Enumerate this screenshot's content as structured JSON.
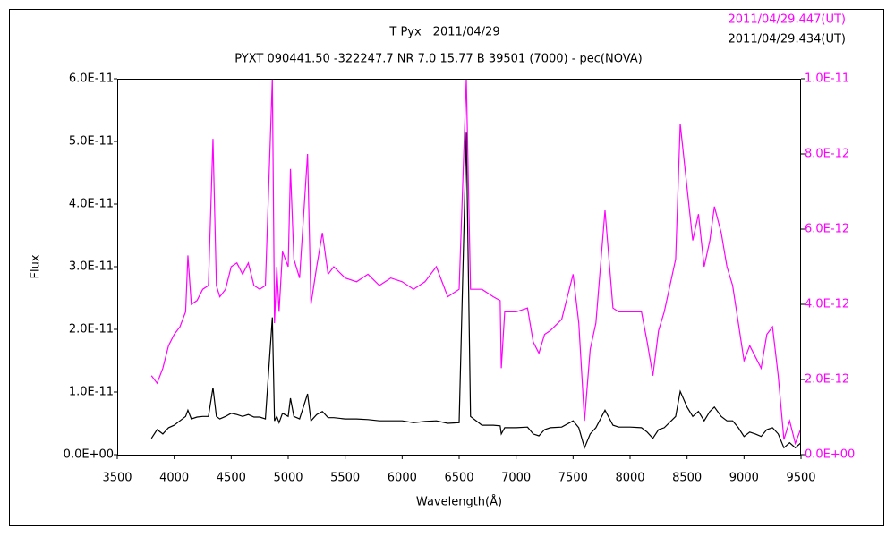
{
  "chart_data": {
    "type": "line",
    "title": "T Pyx　2011/04/29",
    "subtitle": "PYXT 090441.50 -322247.7 NR 7.0 15.77 B 39501 (7000) - pec(NOVA)",
    "x_label": "Wavelength(Å)",
    "y_label": "Flux",
    "xlim": [
      3500,
      9500
    ],
    "xticks": [
      3500,
      4000,
      4500,
      5000,
      5500,
      6000,
      6500,
      7000,
      7500,
      8000,
      8500,
      9000,
      9500
    ],
    "ylim": [
      0,
      6e-11
    ],
    "yticks": [
      {
        "value": 0,
        "label": "0.0E+00"
      },
      {
        "value": 1e-11,
        "label": "1.0E-11"
      },
      {
        "value": 2e-11,
        "label": "2.0E-11"
      },
      {
        "value": 3e-11,
        "label": "3.0E-11"
      },
      {
        "value": 4e-11,
        "label": "4.0E-11"
      },
      {
        "value": 5e-11,
        "label": "5.0E-11"
      },
      {
        "value": 6e-11,
        "label": "6.0E-11"
      }
    ],
    "y2lim": [
      0,
      1e-11
    ],
    "y2ticks": [
      {
        "value": 0,
        "label": "0.0E+00"
      },
      {
        "value": 2e-12,
        "label": "2.0E-12"
      },
      {
        "value": 4e-12,
        "label": "4.0E-12"
      },
      {
        "value": 6e-12,
        "label": "6.0E-12"
      },
      {
        "value": 8e-12,
        "label": "8.0E-12"
      },
      {
        "value": 1e-11,
        "label": "1.0E-11"
      }
    ],
    "grid": false,
    "legend": "top-right",
    "x": [
      3800,
      3850,
      3900,
      3950,
      4000,
      4050,
      4100,
      4120,
      4150,
      4200,
      4250,
      4300,
      4340,
      4370,
      4400,
      4450,
      4500,
      4550,
      4600,
      4650,
      4700,
      4750,
      4800,
      4861,
      4880,
      4900,
      4920,
      4950,
      5000,
      5020,
      5050,
      5100,
      5170,
      5200,
      5250,
      5300,
      5350,
      5400,
      5500,
      5600,
      5700,
      5800,
      5900,
      6000,
      6100,
      6200,
      6300,
      6400,
      6500,
      6563,
      6600,
      6700,
      6800,
      6860,
      6870,
      6900,
      7000,
      7100,
      7150,
      7200,
      7250,
      7300,
      7400,
      7500,
      7550,
      7600,
      7650,
      7700,
      7780,
      7850,
      7900,
      8000,
      8100,
      8150,
      8200,
      8250,
      8300,
      8400,
      8440,
      8500,
      8550,
      8600,
      8650,
      8700,
      8740,
      8800,
      8850,
      8900,
      8950,
      9000,
      9050,
      9100,
      9150,
      9200,
      9250,
      9300,
      9350,
      9400,
      9450,
      9500
    ],
    "series": [
      {
        "name": "2011/04/29.447(UT)",
        "color": "#ff00ff",
        "axis": "y2",
        "values": [
          2.1e-12,
          1.9e-12,
          2.3e-12,
          2.9e-12,
          3.2e-12,
          3.4e-12,
          3.8e-12,
          5.3e-12,
          4e-12,
          4.1e-12,
          4.4e-12,
          4.5e-12,
          8.4e-12,
          4.5e-12,
          4.2e-12,
          4.4e-12,
          5e-12,
          5.1e-12,
          4.8e-12,
          5.1e-12,
          4.5e-12,
          4.4e-12,
          4.5e-12,
          1e-11,
          3.5e-12,
          5e-12,
          3.8e-12,
          5.4e-12,
          5e-12,
          7.6e-12,
          5.2e-12,
          4.7e-12,
          8e-12,
          4e-12,
          5e-12,
          5.9e-12,
          4.8e-12,
          5e-12,
          4.7e-12,
          4.6e-12,
          4.8e-12,
          4.5e-12,
          4.7e-12,
          4.6e-12,
          4.4e-12,
          4.6e-12,
          5e-12,
          4.2e-12,
          4.4e-12,
          1e-11,
          4.4e-12,
          4.4e-12,
          4.2e-12,
          4.1e-12,
          2.3e-12,
          3.8e-12,
          3.8e-12,
          3.9e-12,
          3e-12,
          2.7e-12,
          3.2e-12,
          3.3e-12,
          3.6e-12,
          4.8e-12,
          3.5e-12,
          9e-13,
          2.8e-12,
          3.5e-12,
          6.5e-12,
          3.9e-12,
          3.8e-12,
          3.8e-12,
          3.8e-12,
          3e-12,
          2.1e-12,
          3.3e-12,
          3.8e-12,
          5.2e-12,
          8.8e-12,
          7.1e-12,
          5.7e-12,
          6.4e-12,
          5e-12,
          5.7e-12,
          6.6e-12,
          5.9e-12,
          5e-12,
          4.5e-12,
          3.5e-12,
          2.5e-12,
          2.9e-12,
          2.6e-12,
          2.3e-12,
          3.2e-12,
          3.4e-12,
          2.1e-12,
          4e-13,
          9e-13,
          3e-13,
          7e-13
        ]
      },
      {
        "name": "2011/04/29.434(UT)",
        "color": "#000000",
        "axis": "y",
        "values": [
          2.6e-12,
          4e-12,
          3.3e-12,
          4.3e-12,
          4.7e-12,
          5.4e-12,
          6.1e-12,
          7.1e-12,
          5.7e-12,
          6e-12,
          6.1e-12,
          6.1e-12,
          1.07e-11,
          6.1e-12,
          5.7e-12,
          6.1e-12,
          6.6e-12,
          6.4e-12,
          6.1e-12,
          6.4e-12,
          6e-12,
          6e-12,
          5.7e-12,
          2.19e-11,
          5.4e-12,
          6.1e-12,
          5.1e-12,
          6.6e-12,
          6.1e-12,
          9e-12,
          6.1e-12,
          5.7e-12,
          9.7e-12,
          5.4e-12,
          6.4e-12,
          6.9e-12,
          5.9e-12,
          5.9e-12,
          5.7e-12,
          5.7e-12,
          5.6e-12,
          5.4e-12,
          5.4e-12,
          5.4e-12,
          5.1e-12,
          5.3e-12,
          5.4e-12,
          5e-12,
          5.1e-12,
          5.14e-11,
          6.1e-12,
          4.7e-12,
          4.7e-12,
          4.6e-12,
          3.3e-12,
          4.3e-12,
          4.3e-12,
          4.4e-12,
          3.3e-12,
          3e-12,
          4e-12,
          4.3e-12,
          4.4e-12,
          5.4e-12,
          4.3e-12,
          1.1e-12,
          3.3e-12,
          4.3e-12,
          7.1e-12,
          4.7e-12,
          4.4e-12,
          4.4e-12,
          4.3e-12,
          3.6e-12,
          2.6e-12,
          4e-12,
          4.3e-12,
          6.1e-12,
          1.01e-11,
          7.6e-12,
          6.1e-12,
          6.9e-12,
          5.4e-12,
          6.9e-12,
          7.6e-12,
          6.1e-12,
          5.4e-12,
          5.4e-12,
          4.3e-12,
          2.9e-12,
          3.6e-12,
          3.3e-12,
          2.9e-12,
          4e-12,
          4.3e-12,
          3.3e-12,
          1.1e-12,
          1.9e-12,
          1.1e-12,
          1.9e-12
        ]
      }
    ]
  }
}
